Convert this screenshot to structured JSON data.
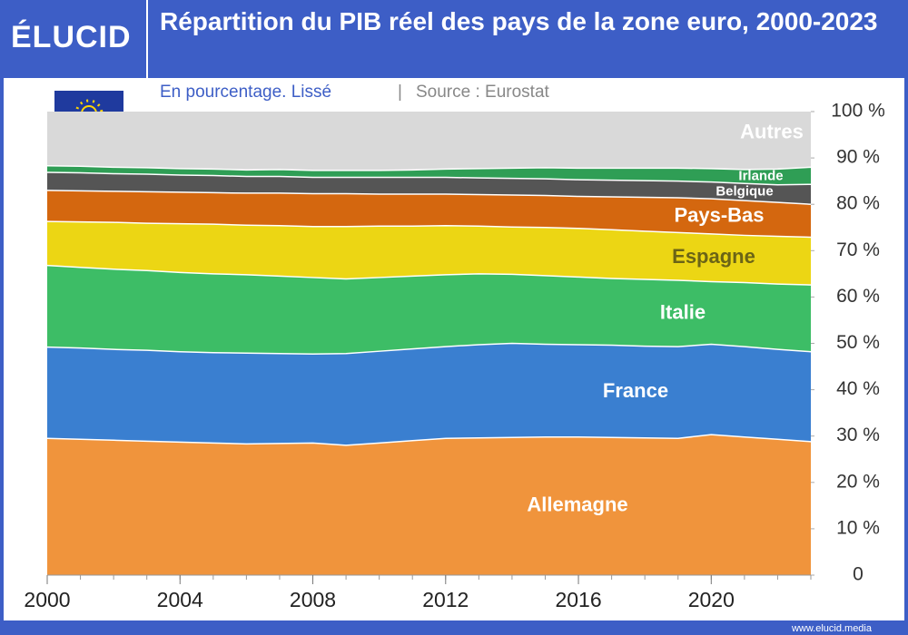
{
  "brand": "ÉLUCID",
  "footer": "www.elucid.media",
  "chart_data": {
    "type": "stacked_area",
    "title": "Répartition du PIB réel des pays de la zone euro, 2000-2023",
    "subtitle": "En pourcentage. Lissé",
    "separator": "|",
    "source": "Source : Eurostat",
    "x": [
      2000,
      2001,
      2002,
      2003,
      2004,
      2005,
      2006,
      2007,
      2008,
      2009,
      2010,
      2011,
      2012,
      2013,
      2014,
      2015,
      2016,
      2017,
      2018,
      2019,
      2020,
      2021,
      2022,
      2023
    ],
    "xlim": [
      2000,
      2023
    ],
    "xticks": [
      2000,
      2004,
      2008,
      2012,
      2016,
      2020
    ],
    "ylim": [
      0,
      100
    ],
    "yticks": [
      0,
      {
        "value": 10,
        "label": "10 %"
      },
      {
        "value": 20,
        "label": "20 %"
      },
      {
        "value": 30,
        "label": "30 %"
      },
      {
        "value": 40,
        "label": "40 %"
      },
      {
        "value": 50,
        "label": "50 %"
      },
      {
        "value": 60,
        "label": "60 %"
      },
      {
        "value": 70,
        "label": "70 %"
      },
      {
        "value": 80,
        "label": "80 %"
      },
      {
        "value": 90,
        "label": "90 %"
      },
      {
        "value": 100,
        "label": "100 %"
      }
    ],
    "series": [
      {
        "name": "Allemagne",
        "color": "#f0943c",
        "label_color": "#ffffff",
        "values": [
          29.5,
          29.3,
          29.1,
          28.9,
          28.7,
          28.5,
          28.3,
          28.4,
          28.5,
          28.0,
          28.5,
          29.0,
          29.5,
          29.6,
          29.7,
          29.8,
          29.8,
          29.7,
          29.6,
          29.5,
          30.3,
          29.8,
          29.3,
          28.8
        ]
      },
      {
        "name": "France",
        "color": "#3a7fd0",
        "label_color": "#ffffff",
        "values": [
          19.7,
          19.7,
          19.6,
          19.6,
          19.5,
          19.5,
          19.6,
          19.4,
          19.2,
          19.8,
          19.8,
          19.8,
          19.8,
          20.1,
          20.3,
          20.0,
          19.9,
          19.9,
          19.8,
          19.8,
          19.5,
          19.5,
          19.4,
          19.4
        ]
      },
      {
        "name": "Italie",
        "color": "#3dbd66",
        "label_color": "#ffffff",
        "values": [
          17.6,
          17.4,
          17.3,
          17.2,
          17.1,
          17.0,
          16.9,
          16.7,
          16.5,
          16.1,
          15.9,
          15.7,
          15.5,
          15.3,
          14.9,
          14.8,
          14.6,
          14.4,
          14.4,
          14.3,
          13.5,
          13.8,
          14.1,
          14.4
        ]
      },
      {
        "name": "Espagne",
        "color": "#ecd614",
        "label_color": "#6b6416",
        "values": [
          9.5,
          9.8,
          10.1,
          10.2,
          10.5,
          10.7,
          10.7,
          10.9,
          11.0,
          11.3,
          11.1,
          10.8,
          10.6,
          10.3,
          10.2,
          10.4,
          10.5,
          10.5,
          10.4,
          10.3,
          10.3,
          10.2,
          10.3,
          10.3
        ]
      },
      {
        "name": "Pays-Bas",
        "color": "#d4670f",
        "label_color": "#ffffff",
        "values": [
          6.7,
          6.7,
          6.7,
          6.8,
          6.8,
          6.8,
          6.9,
          7.0,
          7.1,
          7.1,
          6.9,
          6.9,
          6.8,
          6.8,
          6.9,
          6.9,
          6.9,
          7.1,
          7.3,
          7.5,
          7.6,
          7.5,
          7.3,
          7.1
        ]
      },
      {
        "name": "Belgique",
        "color": "#555555",
        "label_color": "#ffffff",
        "values": [
          3.9,
          3.9,
          3.8,
          3.8,
          3.7,
          3.7,
          3.6,
          3.6,
          3.5,
          3.5,
          3.6,
          3.6,
          3.6,
          3.6,
          3.6,
          3.6,
          3.6,
          3.6,
          3.6,
          3.6,
          3.6,
          3.7,
          3.8,
          4.3
        ]
      },
      {
        "name": "Irlande",
        "color": "#2f9e55",
        "label_color": "#ffffff",
        "values": [
          1.4,
          1.4,
          1.4,
          1.4,
          1.4,
          1.4,
          1.4,
          1.5,
          1.5,
          1.5,
          1.5,
          1.6,
          1.8,
          2.0,
          2.2,
          2.4,
          2.5,
          2.6,
          2.7,
          2.8,
          2.9,
          3.0,
          3.4,
          3.7
        ]
      },
      {
        "name": "Autres",
        "color": "#d9d9d9",
        "label_color": "#ffffff",
        "values": [
          11.7,
          11.8,
          12.0,
          12.1,
          12.3,
          12.4,
          12.6,
          12.5,
          12.7,
          12.7,
          12.7,
          12.6,
          12.4,
          12.3,
          12.2,
          12.1,
          12.2,
          12.2,
          12.2,
          12.2,
          12.3,
          12.5,
          12.4,
          12.0
        ]
      }
    ]
  }
}
